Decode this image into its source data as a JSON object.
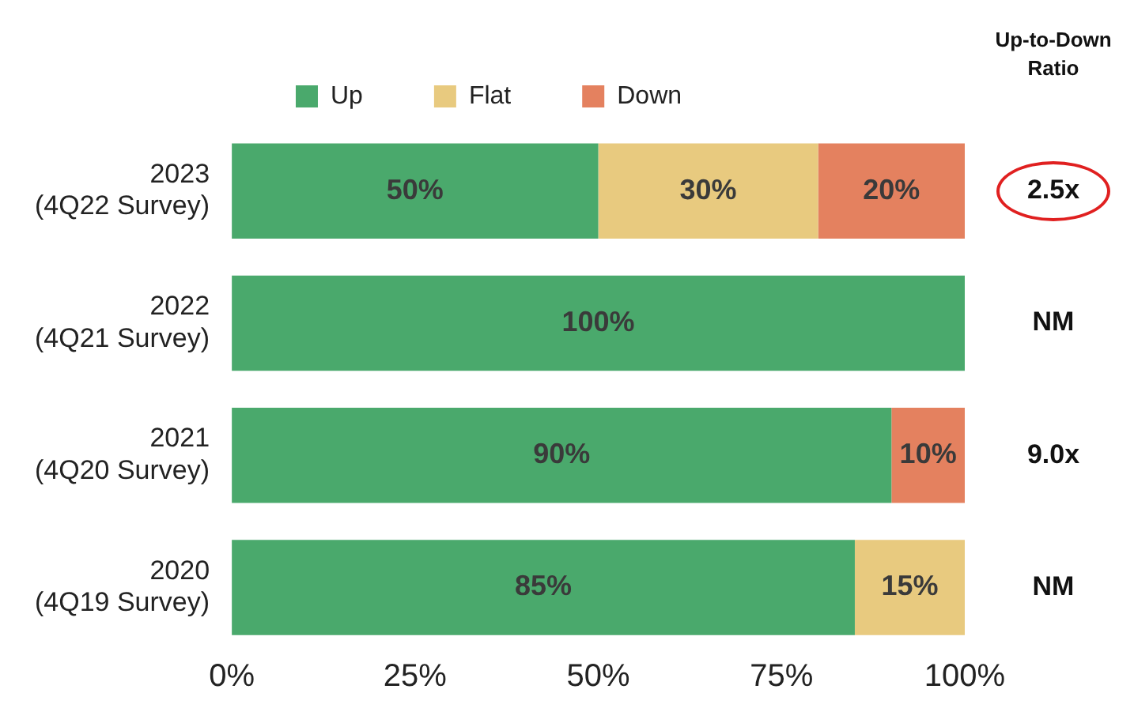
{
  "chart_data": {
    "type": "bar",
    "orientation": "horizontal",
    "stacked": true,
    "categories": [
      "2023\n(4Q22 Survey)",
      "2022\n(4Q21 Survey)",
      "2021\n(4Q20 Survey)",
      "2020\n(4Q19 Survey)"
    ],
    "series": [
      {
        "name": "Up",
        "color": "#4aa96c",
        "values": [
          50,
          100,
          90,
          85
        ],
        "value_labels": [
          "50%",
          "100%",
          "90%",
          "85%"
        ]
      },
      {
        "name": "Flat",
        "color": "#e8ca7f",
        "values": [
          30,
          null,
          null,
          15
        ],
        "value_labels": [
          "30%",
          null,
          null,
          "15%"
        ]
      },
      {
        "name": "Down",
        "color": "#e4815f",
        "values": [
          20,
          null,
          10,
          null
        ],
        "value_labels": [
          "20%",
          null,
          "10%",
          null
        ]
      }
    ],
    "xlim": [
      0,
      100
    ],
    "xticks": [
      {
        "value": 0,
        "label": "0%"
      },
      {
        "value": 25,
        "label": "25%"
      },
      {
        "value": 50,
        "label": "50%"
      },
      {
        "value": 75,
        "label": "75%"
      },
      {
        "value": 100,
        "label": "100%"
      }
    ],
    "grid": false,
    "legend": "top",
    "annotations": [
      "Up-to-Down Ratio",
      "2.5x",
      "NM",
      "9.0x",
      "NM"
    ]
  }
}
